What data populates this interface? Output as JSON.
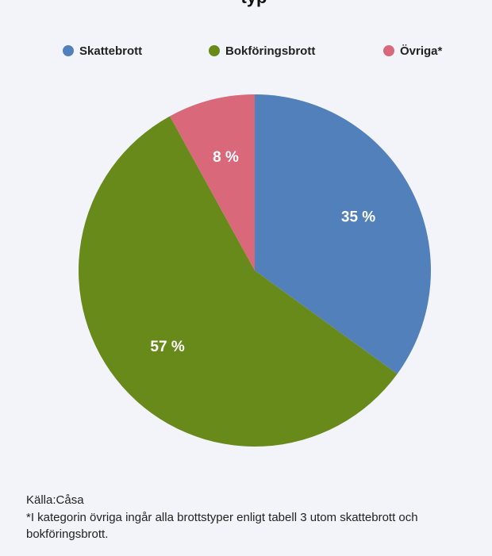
{
  "chart_data": {
    "type": "pie",
    "title": "typ",
    "categories": [
      "Skattebrott",
      "Bokföringsbrott",
      "Övriga*"
    ],
    "values": [
      35,
      57,
      8
    ],
    "value_labels": [
      "35 %",
      "57 %",
      "8 %"
    ],
    "colors": [
      "#5180bb",
      "#688a1a",
      "#d9687a"
    ],
    "legend": "top",
    "source": "Källa:Cåsa",
    "note": "*I kategorin övriga ingår alla brottstyper enligt tabell 3 utom skattebrott och bokföringsbrott."
  }
}
